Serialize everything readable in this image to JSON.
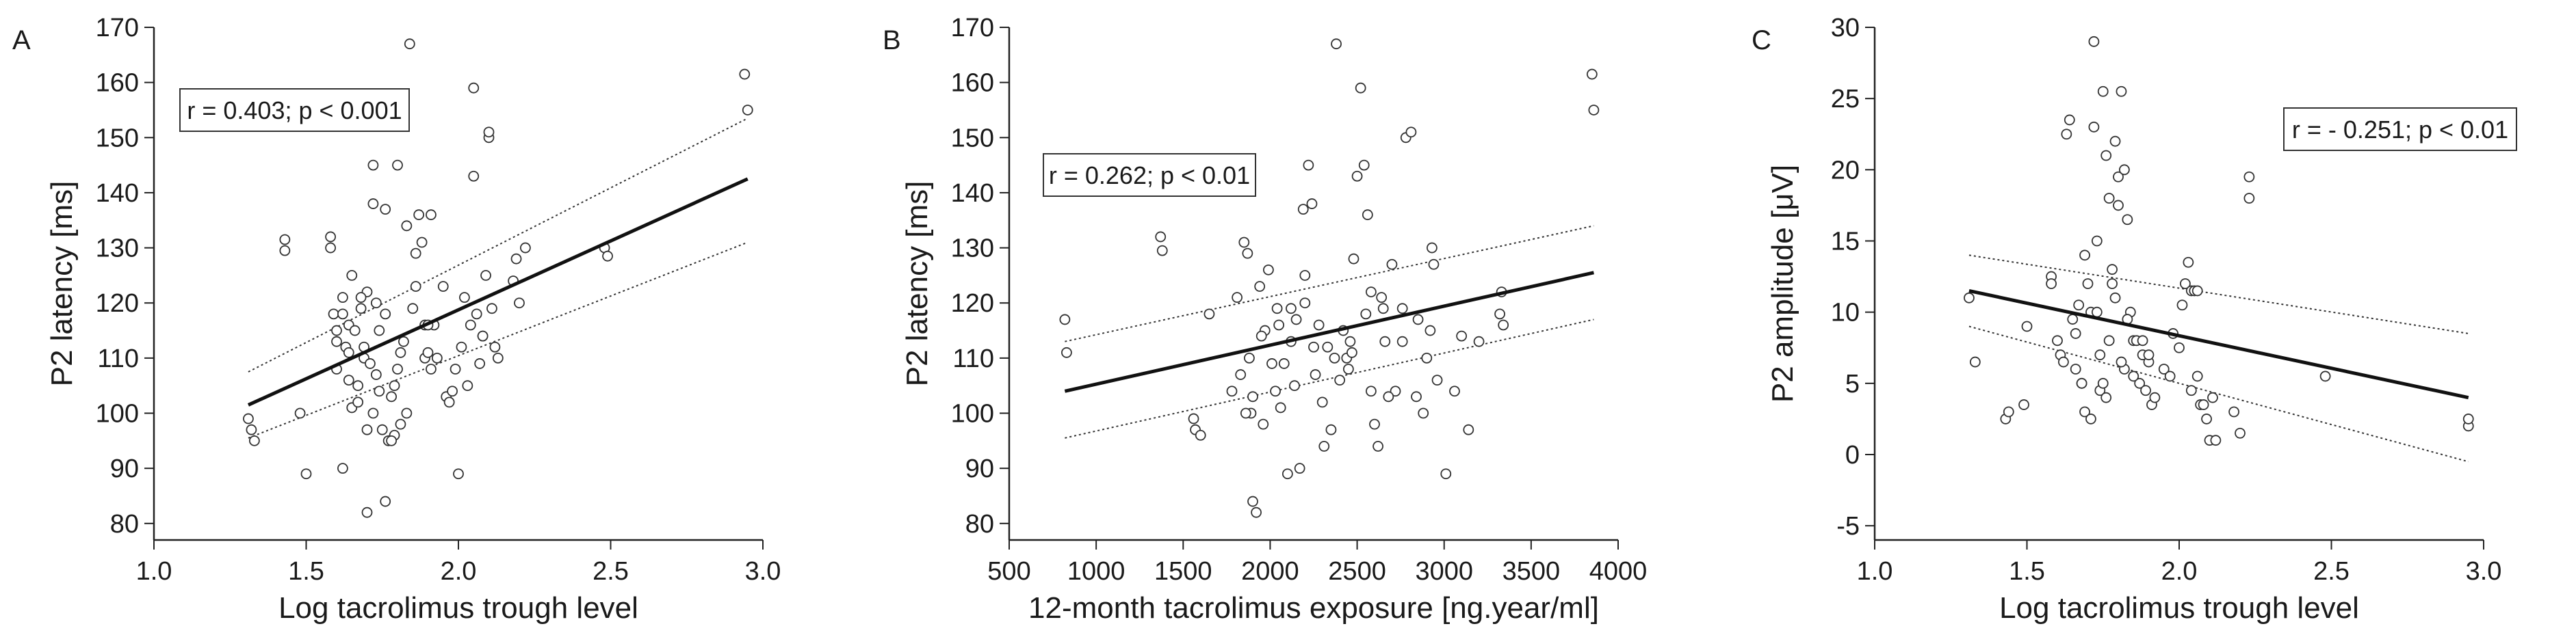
{
  "chart_data": [
    {
      "panel": "A",
      "type": "scatter",
      "xlabel": "Log tacrolimus trough level",
      "ylabel": "P2 latency [ms]",
      "xlim": [
        1.0,
        3.0
      ],
      "ylim": [
        77,
        170
      ],
      "xticks": [
        1.0,
        1.5,
        2.0,
        2.5,
        3.0
      ],
      "xtick_labels": [
        "1.0",
        "1.5",
        "2.0",
        "2.5",
        "3.0"
      ],
      "yticks": [
        80,
        90,
        100,
        110,
        120,
        130,
        140,
        150,
        160,
        170
      ],
      "ytick_labels": [
        "80",
        "90",
        "100",
        "110",
        "120",
        "130",
        "140",
        "150",
        "160",
        "170"
      ],
      "annotation": "r = 0.403; p < 0.001",
      "annotation_position": "top-left",
      "grid": false,
      "regression": {
        "x": [
          1.31,
          2.95
        ],
        "y": [
          101.5,
          142.5
        ]
      },
      "ci_upper": {
        "x": [
          1.31,
          2.95
        ],
        "y": [
          107.5,
          153.5
        ]
      },
      "ci_lower": {
        "x": [
          1.31,
          2.95
        ],
        "y": [
          95.5,
          131
        ]
      },
      "series": [
        {
          "x": [
            1.31,
            1.32,
            1.33,
            1.43,
            1.43,
            1.48,
            1.5,
            1.58,
            1.58,
            1.59,
            1.6,
            1.6,
            1.62,
            1.62,
            1.63,
            1.64,
            1.64,
            1.65,
            1.65,
            1.66,
            1.67,
            1.68,
            1.69,
            1.7,
            1.7,
            1.71,
            1.72,
            1.72,
            1.73,
            1.74,
            1.75,
            1.76,
            1.76,
            1.77,
            1.78,
            1.79,
            1.8,
            1.8,
            1.81,
            1.82,
            1.83,
            1.84,
            1.85,
            1.86,
            1.86,
            1.87,
            1.88,
            1.89,
            1.89,
            1.9,
            1.91,
            1.92,
            1.93,
            1.95,
            1.96,
            1.97,
            1.98,
            2.0,
            2.01,
            2.02,
            2.03,
            2.04,
            2.05,
            2.05,
            2.06,
            2.07,
            2.08,
            2.09,
            2.1,
            2.1,
            2.11,
            2.12,
            2.18,
            2.19,
            2.2,
            2.22,
            2.48,
            2.49,
            2.94,
            2.95,
            1.67,
            1.69,
            1.73,
            1.76,
            1.79,
            1.83,
            1.91,
            1.62,
            1.7,
            1.74,
            2.13,
            1.6,
            1.64,
            1.68,
            1.72,
            1.78,
            1.81,
            1.9,
            1.99,
            2.08
          ],
          "y": [
            99,
            97,
            95,
            131.5,
            129.5,
            100,
            89,
            132,
            130,
            118,
            115,
            108,
            90,
            121,
            112,
            106,
            116,
            125,
            101,
            115,
            105,
            119,
            110,
            82,
            97,
            109,
            100,
            145,
            120,
            115,
            97,
            137,
            84,
            95,
            103,
            96,
            145,
            108,
            98,
            113,
            134,
            167,
            119,
            129,
            123,
            136,
            131,
            110,
            116,
            111,
            136,
            116,
            110,
            123,
            103,
            102,
            104,
            89,
            112,
            121,
            105,
            116,
            159,
            143,
            118,
            109,
            114,
            125,
            150,
            151,
            119,
            112,
            124,
            128,
            120,
            130,
            130,
            128.5,
            161.5,
            155,
            102,
            112,
            107,
            118,
            105,
            100,
            108,
            118,
            122,
            104,
            110,
            113,
            111,
            121,
            138,
            95,
            111,
            116,
            108,
            114
          ]
        }
      ]
    },
    {
      "panel": "B",
      "type": "scatter",
      "xlabel": "12-month tacrolimus exposure [ng.year/ml]",
      "ylabel": "P2 latency [ms]",
      "xlim": [
        500,
        4000
      ],
      "ylim": [
        77,
        170
      ],
      "xticks": [
        500,
        1000,
        1500,
        2000,
        2500,
        3000,
        3500,
        4000
      ],
      "xtick_labels": [
        "500",
        "1000",
        "1500",
        "2000",
        "2500",
        "3000",
        "3500",
        "4000"
      ],
      "yticks": [
        80,
        90,
        100,
        110,
        120,
        130,
        140,
        150,
        160,
        170
      ],
      "ytick_labels": [
        "80",
        "90",
        "100",
        "110",
        "120",
        "130",
        "140",
        "150",
        "160",
        "170"
      ],
      "annotation": "r = 0.262; p < 0.01",
      "annotation_position": "top-left",
      "grid": false,
      "regression": {
        "x": [
          820,
          3860
        ],
        "y": [
          104,
          125.5
        ]
      },
      "ci_upper": {
        "x": [
          820,
          3860
        ],
        "y": [
          113,
          134
        ]
      },
      "ci_lower": {
        "x": [
          820,
          3860
        ],
        "y": [
          95.5,
          117
        ]
      },
      "series": [
        {
          "x": [
            820,
            830,
            1370,
            1380,
            1560,
            1570,
            1600,
            1650,
            1780,
            1810,
            1830,
            1850,
            1870,
            1880,
            1890,
            1900,
            1920,
            1940,
            1960,
            1970,
            1990,
            2010,
            2030,
            2040,
            2060,
            2080,
            2100,
            2120,
            2140,
            2150,
            2170,
            2190,
            2200,
            2220,
            2240,
            2260,
            2280,
            2300,
            2310,
            2330,
            2350,
            2380,
            2400,
            2420,
            2440,
            2460,
            2480,
            2500,
            2520,
            2540,
            2560,
            2580,
            2600,
            2620,
            2640,
            2660,
            2700,
            2720,
            2760,
            2780,
            2810,
            2840,
            2850,
            2880,
            2900,
            2930,
            2940,
            2960,
            3010,
            3060,
            3100,
            3140,
            3200,
            3320,
            3330,
            3340,
            3850,
            3860,
            1900,
            2250,
            2450,
            2650,
            2050,
            1860,
            2580,
            2760,
            2200,
            2370,
            2550,
            1950,
            2120,
            2680,
            2920,
            2470
          ],
          "y": [
            117,
            111,
            132,
            129.5,
            99,
            97,
            96,
            118,
            104,
            121,
            107,
            131,
            129,
            110,
            100,
            84,
            82,
            123,
            98,
            115,
            126,
            109,
            104,
            119,
            101,
            109,
            89,
            113,
            105,
            117,
            90,
            137,
            120,
            145,
            138,
            107,
            116,
            102,
            94,
            112,
            97,
            167,
            106,
            115,
            110,
            113,
            128,
            143,
            159,
            145,
            136,
            104,
            98,
            94,
            121,
            113,
            127,
            104,
            119,
            150,
            151,
            103,
            117,
            100,
            110,
            130,
            127,
            106,
            89,
            104,
            114,
            97,
            113,
            118,
            122,
            116,
            161.5,
            155,
            103,
            112,
            108,
            119,
            116,
            100,
            122,
            113,
            125,
            110,
            118,
            114,
            119,
            103,
            115,
            111
          ]
        }
      ]
    },
    {
      "panel": "C",
      "type": "scatter",
      "xlabel": "Log tacrolimus trough level",
      "ylabel": "P2  amplitude [μV]",
      "xlim": [
        1.0,
        3.0
      ],
      "ylim": [
        -6,
        30
      ],
      "xticks": [
        1.0,
        1.5,
        2.0,
        2.5,
        3.0
      ],
      "xtick_labels": [
        "1.0",
        "1.5",
        "2.0",
        "2.5",
        "3.0"
      ],
      "yticks": [
        -5,
        0,
        5,
        10,
        15,
        20,
        25,
        30
      ],
      "ytick_labels": [
        "-5",
        "0",
        "5",
        "10",
        "15",
        "20",
        "25",
        "30"
      ],
      "annotation": "r = - 0.251; p < 0.01",
      "annotation_position": "top-right",
      "grid": false,
      "regression": {
        "x": [
          1.31,
          2.95
        ],
        "y": [
          11.5,
          4
        ]
      },
      "ci_upper": {
        "x": [
          1.31,
          2.95
        ],
        "y": [
          14,
          8.5
        ]
      },
      "ci_lower": {
        "x": [
          1.31,
          2.95
        ],
        "y": [
          9,
          -0.5
        ]
      },
      "series": [
        {
          "x": [
            1.31,
            1.33,
            1.43,
            1.44,
            1.49,
            1.5,
            1.58,
            1.58,
            1.6,
            1.61,
            1.62,
            1.63,
            1.64,
            1.65,
            1.66,
            1.67,
            1.68,
            1.69,
            1.7,
            1.71,
            1.72,
            1.72,
            1.73,
            1.74,
            1.75,
            1.76,
            1.77,
            1.78,
            1.79,
            1.8,
            1.8,
            1.81,
            1.82,
            1.83,
            1.84,
            1.85,
            1.86,
            1.87,
            1.88,
            1.89,
            1.9,
            1.91,
            1.92,
            1.95,
            1.97,
            1.98,
            2.0,
            2.01,
            2.02,
            2.03,
            2.04,
            2.05,
            2.06,
            2.07,
            2.08,
            2.09,
            2.1,
            2.11,
            2.12,
            2.18,
            2.2,
            2.23,
            2.23,
            2.48,
            2.95,
            2.95,
            1.68,
            1.71,
            1.74,
            1.76,
            1.77,
            1.79,
            1.82,
            1.66,
            1.69,
            1.73,
            1.75,
            1.78,
            1.81,
            1.83,
            1.85,
            1.88,
            1.9,
            2.04,
            2.06
          ],
          "y": [
            11,
            6.5,
            2.5,
            3,
            3.5,
            9,
            12.5,
            12,
            8,
            7,
            6.5,
            22.5,
            23.5,
            9.5,
            6,
            10.5,
            5,
            3,
            12,
            2.5,
            29,
            23,
            15,
            4.5,
            25.5,
            21,
            18,
            13,
            22,
            17.5,
            19.5,
            25.5,
            20,
            16.5,
            10,
            8,
            8,
            5,
            7,
            4.5,
            6.5,
            3.5,
            4,
            6,
            5.5,
            8.5,
            7.5,
            10.5,
            12,
            13.5,
            11.5,
            11.5,
            5.5,
            3.5,
            3.5,
            2.5,
            1,
            4,
            1,
            3,
            1.5,
            19.5,
            18,
            5.5,
            2,
            2.5,
            5,
            10,
            7,
            4,
            8,
            11,
            6,
            8.5,
            14,
            10,
            5,
            12,
            6.5,
            9.5,
            5.5,
            8,
            7,
            4.5,
            11.5
          ]
        }
      ]
    }
  ],
  "panels": [
    {
      "letter": "A",
      "annotation": "r = 0.403; p < 0.001"
    },
    {
      "letter": "B",
      "annotation": "r = 0.262; p < 0.01"
    },
    {
      "letter": "C",
      "annotation": "r = - 0.251; p < 0.01"
    }
  ]
}
